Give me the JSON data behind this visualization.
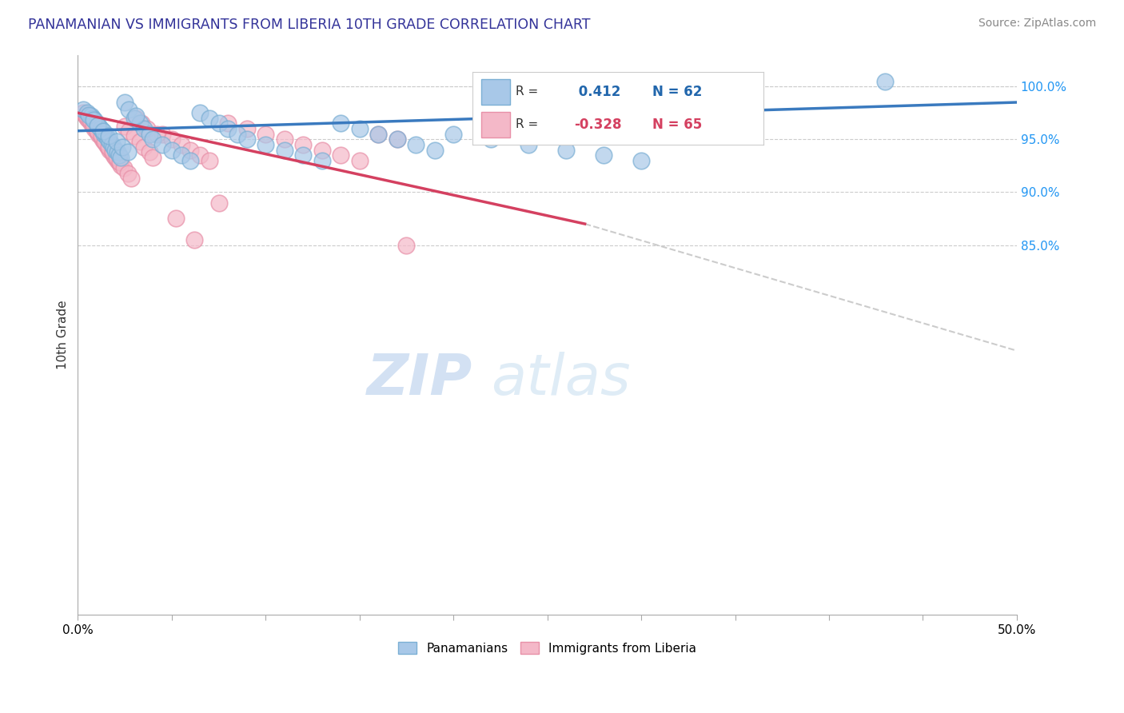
{
  "title": "PANAMANIAN VS IMMIGRANTS FROM LIBERIA 10TH GRADE CORRELATION CHART",
  "source": "Source: ZipAtlas.com",
  "ylabel": "10th Grade",
  "xmin": 0.0,
  "xmax": 50.0,
  "ymin": 50.0,
  "ymax": 103.0,
  "blue_R": 0.412,
  "blue_N": 62,
  "pink_R": -0.328,
  "pink_N": 65,
  "blue_color": "#a8c8e8",
  "blue_edge_color": "#7bafd4",
  "pink_color": "#f4b8c8",
  "pink_edge_color": "#e890a8",
  "blue_line_color": "#3a7abf",
  "pink_line_color": "#d44060",
  "dashed_line_color": "#cccccc",
  "legend_blue_label": "Panamanians",
  "legend_pink_label": "Immigrants from Liberia",
  "watermark_zip": "ZIP",
  "watermark_atlas": "atlas",
  "ytick_vals": [
    85.0,
    90.0,
    95.0,
    100.0
  ],
  "blue_scatter_x": [
    0.3,
    0.5,
    0.7,
    0.8,
    0.9,
    1.0,
    1.1,
    1.2,
    1.3,
    1.4,
    1.5,
    1.6,
    1.7,
    1.8,
    1.9,
    2.0,
    2.1,
    2.2,
    2.3,
    2.5,
    2.7,
    3.0,
    3.3,
    3.5,
    3.8,
    4.0,
    4.5,
    5.0,
    5.5,
    6.0,
    6.5,
    7.0,
    7.5,
    8.0,
    8.5,
    9.0,
    10.0,
    11.0,
    12.0,
    13.0,
    14.0,
    15.0,
    16.0,
    17.0,
    18.0,
    19.0,
    20.0,
    22.0,
    24.0,
    26.0,
    28.0,
    30.0,
    0.6,
    0.85,
    1.05,
    1.35,
    1.65,
    2.05,
    2.35,
    2.65,
    3.1,
    43.0
  ],
  "blue_scatter_y": [
    97.8,
    97.5,
    97.2,
    97.0,
    96.8,
    96.5,
    96.3,
    96.0,
    95.8,
    95.5,
    95.3,
    95.0,
    94.8,
    94.5,
    94.3,
    94.0,
    93.8,
    93.5,
    93.3,
    98.5,
    97.8,
    97.0,
    96.5,
    96.0,
    95.5,
    95.0,
    94.5,
    94.0,
    93.5,
    93.0,
    97.5,
    97.0,
    96.5,
    96.0,
    95.5,
    95.0,
    94.5,
    94.0,
    93.5,
    93.0,
    96.5,
    96.0,
    95.5,
    95.0,
    94.5,
    94.0,
    95.5,
    95.0,
    94.5,
    94.0,
    93.5,
    93.0,
    97.3,
    96.8,
    96.3,
    95.8,
    95.3,
    94.8,
    94.3,
    93.8,
    97.2,
    100.5
  ],
  "pink_scatter_x": [
    0.3,
    0.4,
    0.5,
    0.6,
    0.7,
    0.8,
    0.9,
    1.0,
    1.1,
    1.2,
    1.3,
    1.4,
    1.5,
    1.6,
    1.7,
    1.8,
    1.9,
    2.0,
    2.1,
    2.2,
    2.3,
    2.5,
    2.7,
    3.0,
    3.3,
    3.5,
    3.8,
    4.0,
    4.5,
    5.0,
    5.5,
    6.0,
    6.5,
    7.0,
    8.0,
    9.0,
    10.0,
    11.0,
    12.0,
    13.0,
    14.0,
    15.0,
    16.0,
    17.0,
    0.45,
    0.65,
    0.85,
    1.05,
    1.25,
    1.45,
    1.65,
    1.85,
    2.05,
    2.25,
    2.45,
    2.65,
    2.85,
    3.1,
    3.4,
    3.7,
    4.2,
    5.2,
    6.2,
    7.5,
    17.5
  ],
  "pink_scatter_y": [
    97.5,
    97.2,
    97.0,
    96.8,
    96.5,
    96.3,
    96.0,
    95.8,
    95.5,
    95.3,
    95.0,
    94.8,
    94.5,
    94.3,
    94.0,
    93.8,
    93.5,
    93.3,
    93.0,
    92.8,
    92.5,
    96.2,
    95.8,
    95.3,
    94.8,
    94.3,
    93.8,
    93.3,
    95.5,
    95.0,
    94.5,
    94.0,
    93.5,
    93.0,
    96.5,
    96.0,
    95.5,
    95.0,
    94.5,
    94.0,
    93.5,
    93.0,
    95.5,
    95.0,
    97.3,
    96.8,
    96.3,
    95.8,
    95.3,
    94.8,
    94.3,
    93.8,
    93.3,
    92.8,
    92.3,
    91.8,
    91.3,
    97.0,
    96.5,
    96.0,
    95.5,
    87.5,
    85.5,
    89.0,
    85.0
  ]
}
